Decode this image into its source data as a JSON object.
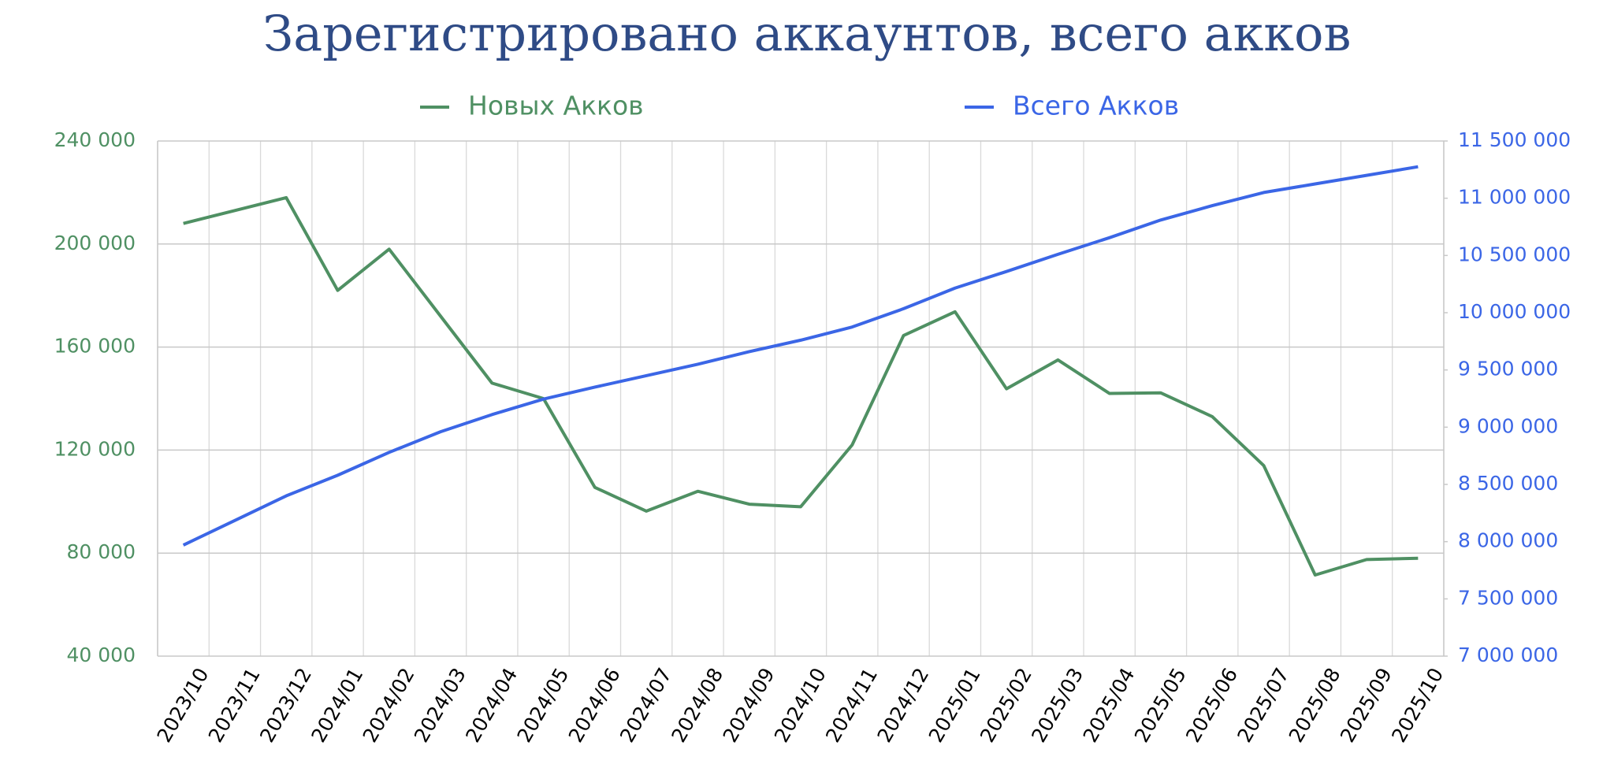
{
  "chart_data": {
    "type": "line",
    "title": "Зарегистрировано аккаунтов, всего акков",
    "categories": [
      "2023/10",
      "2023/11",
      "2023/12",
      "2024/01",
      "2024/02",
      "2024/03",
      "2024/04",
      "2024/05",
      "2024/06",
      "2024/07",
      "2024/08",
      "2024/09",
      "2024/10",
      "2024/11",
      "2024/12",
      "2025/01",
      "2025/02",
      "2025/03",
      "2025/04",
      "2025/05",
      "2025/06",
      "2025/07",
      "2025/08",
      "2025/09",
      "2025/10"
    ],
    "series": [
      {
        "name": "Новых Акков",
        "color": "#4f9063",
        "values": [
          208000,
          213000,
          218000,
          182000,
          198000,
          172000,
          146000,
          140000,
          105500,
          96300,
          104000,
          99000,
          98000,
          122000,
          164500,
          173700,
          143800,
          155000,
          142000,
          142200,
          133000,
          114000,
          71500,
          77500,
          78000
        ]
      },
      {
        "name": "Всего Акков",
        "color": "#3b66e6",
        "axis": "y2",
        "values": [
          7970000,
          8185000,
          8400000,
          8580000,
          8780000,
          8960000,
          9110000,
          9245000,
          9350000,
          9450000,
          9550000,
          9660000,
          9760000,
          9875000,
          10035000,
          10215000,
          10360000,
          10510000,
          10655000,
          10810000,
          10935000,
          11050000,
          11125000,
          11200000,
          11275000
        ]
      }
    ],
    "ylim": [
      40000,
      240000
    ],
    "yticks": [
      {
        "value": 40000,
        "label": "40 000"
      },
      {
        "value": 80000,
        "label": "80 000"
      },
      {
        "value": 120000,
        "label": "120 000"
      },
      {
        "value": 160000,
        "label": "160 000"
      },
      {
        "value": 200000,
        "label": "200 000"
      },
      {
        "value": 240000,
        "label": "240 000"
      }
    ],
    "y2lim": [
      7000000,
      11500000
    ],
    "y2ticks": [
      {
        "value": 7000000,
        "label": "7 000 000"
      },
      {
        "value": 7500000,
        "label": "7 500 000"
      },
      {
        "value": 8000000,
        "label": "8 000 000"
      },
      {
        "value": 8500000,
        "label": "8 500 000"
      },
      {
        "value": 9000000,
        "label": "9 000 000"
      },
      {
        "value": 9500000,
        "label": "9 500 000"
      },
      {
        "value": 10000000,
        "label": "10 000 000"
      },
      {
        "value": 10500000,
        "label": "10 500 000"
      },
      {
        "value": 11000000,
        "label": "11 000 000"
      },
      {
        "value": 11500000,
        "label": "11 500 000"
      }
    ],
    "grid": true,
    "legend": "top"
  }
}
